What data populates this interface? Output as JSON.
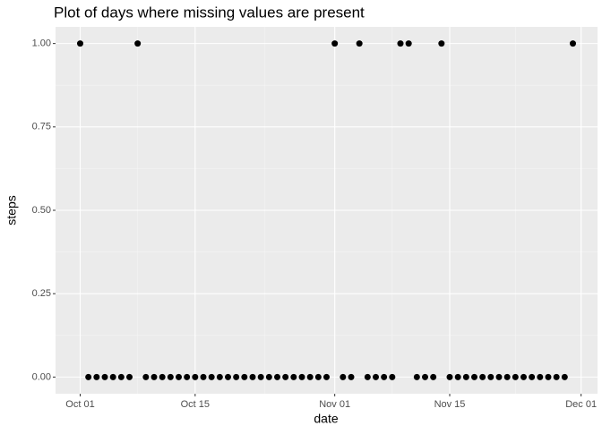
{
  "chart_data": {
    "type": "scatter",
    "title": "Plot of days where missing values are present",
    "x_label": "date",
    "y_label": "steps",
    "x": [
      "Oct 01",
      "Oct 02",
      "Oct 03",
      "Oct 04",
      "Oct 05",
      "Oct 06",
      "Oct 07",
      "Oct 08",
      "Oct 09",
      "Oct 10",
      "Oct 11",
      "Oct 12",
      "Oct 13",
      "Oct 14",
      "Oct 15",
      "Oct 16",
      "Oct 17",
      "Oct 18",
      "Oct 19",
      "Oct 20",
      "Oct 21",
      "Oct 22",
      "Oct 23",
      "Oct 24",
      "Oct 25",
      "Oct 26",
      "Oct 27",
      "Oct 28",
      "Oct 29",
      "Oct 30",
      "Oct 31",
      "Nov 01",
      "Nov 02",
      "Nov 03",
      "Nov 04",
      "Nov 05",
      "Nov 06",
      "Nov 07",
      "Nov 08",
      "Nov 09",
      "Nov 10",
      "Nov 11",
      "Nov 12",
      "Nov 13",
      "Nov 14",
      "Nov 15",
      "Nov 16",
      "Nov 17",
      "Nov 18",
      "Nov 19",
      "Nov 20",
      "Nov 21",
      "Nov 22",
      "Nov 23",
      "Nov 24",
      "Nov 25",
      "Nov 26",
      "Nov 27",
      "Nov 28",
      "Nov 29",
      "Nov 30"
    ],
    "values": [
      1,
      0,
      0,
      0,
      0,
      0,
      0,
      1,
      0,
      0,
      0,
      0,
      0,
      0,
      0,
      0,
      0,
      0,
      0,
      0,
      0,
      0,
      0,
      0,
      0,
      0,
      0,
      0,
      0,
      0,
      0,
      1,
      0,
      0,
      1,
      0,
      0,
      0,
      0,
      1,
      1,
      0,
      0,
      0,
      1,
      0,
      0,
      0,
      0,
      0,
      0,
      0,
      0,
      0,
      0,
      0,
      0,
      0,
      0,
      0,
      1
    ],
    "color": "#000000",
    "xlim": [
      "Sep 28",
      "Dec 03"
    ],
    "xticks": [
      "Oct 01",
      "Oct 15",
      "Nov 01",
      "Nov 15",
      "Dec 01"
    ],
    "ylim": [
      -0.05,
      1.05
    ],
    "yticks": [
      {
        "value": 0,
        "label": "0.00"
      },
      {
        "value": 0.25,
        "label": "0.25"
      },
      {
        "value": 0.5,
        "label": "0.50"
      },
      {
        "value": 0.75,
        "label": "0.75"
      },
      {
        "value": 1,
        "label": "1.00"
      }
    ],
    "grid": true
  }
}
